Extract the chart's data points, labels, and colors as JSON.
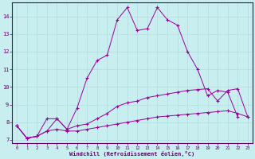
{
  "xlabel": "Windchill (Refroidissement éolien,°C)",
  "bg_color": "#c8eef0",
  "grid_color": "#b0dde0",
  "line_color": "#990099",
  "xlim": [
    -0.5,
    23.5
  ],
  "ylim": [
    6.8,
    14.8
  ],
  "xticks": [
    0,
    1,
    2,
    3,
    4,
    5,
    6,
    7,
    8,
    9,
    10,
    11,
    12,
    13,
    14,
    15,
    16,
    17,
    18,
    19,
    20,
    21,
    22,
    23
  ],
  "yticks": [
    7,
    8,
    9,
    10,
    11,
    12,
    13,
    14
  ],
  "line1_x": [
    0,
    1,
    2,
    3,
    4,
    5,
    6,
    7,
    8,
    9,
    10,
    11,
    12,
    13,
    14,
    15,
    16,
    17,
    18,
    19,
    20,
    21,
    22,
    23
  ],
  "line1_y": [
    7.8,
    7.1,
    7.2,
    7.5,
    7.6,
    7.5,
    7.5,
    7.6,
    7.7,
    7.8,
    7.9,
    8.0,
    8.1,
    8.2,
    8.3,
    8.35,
    8.4,
    8.45,
    8.5,
    8.55,
    8.6,
    8.65,
    8.5,
    8.3
  ],
  "line2_x": [
    0,
    1,
    2,
    3,
    4,
    5,
    6,
    7,
    8,
    9,
    10,
    11,
    12,
    13,
    14,
    15,
    16,
    17,
    18,
    19,
    20,
    21,
    22,
    23
  ],
  "line2_y": [
    7.8,
    7.1,
    7.2,
    7.5,
    8.2,
    7.6,
    7.8,
    7.9,
    8.2,
    8.5,
    8.9,
    9.1,
    9.2,
    9.4,
    9.5,
    9.6,
    9.7,
    9.8,
    9.85,
    9.9,
    9.2,
    9.8,
    9.9,
    8.3
  ],
  "line3_x": [
    0,
    1,
    2,
    3,
    4,
    5,
    6,
    7,
    8,
    9,
    10,
    11,
    12,
    13,
    14,
    15,
    16,
    17,
    18,
    19,
    20,
    21,
    22
  ],
  "line3_y": [
    7.8,
    7.1,
    7.2,
    8.2,
    8.2,
    7.6,
    8.8,
    10.5,
    11.5,
    11.8,
    13.8,
    14.5,
    13.2,
    13.3,
    14.5,
    13.8,
    13.5,
    12.0,
    11.0,
    9.5,
    9.8,
    9.7,
    8.3
  ]
}
